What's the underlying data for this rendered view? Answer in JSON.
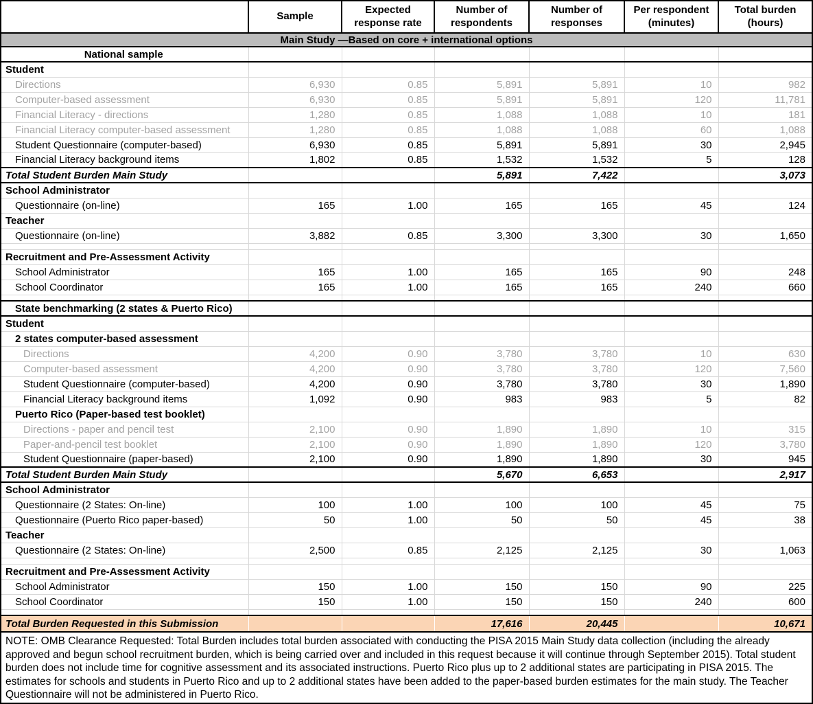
{
  "colors": {
    "band_bg": "#bcbcbc",
    "grand_total_bg": "#fbd5b5",
    "muted_text": "#a3a3a3",
    "grid_line": "#d8d8d8"
  },
  "table": {
    "headers": [
      "",
      "Sample",
      "Expected response rate",
      "Number of respondents",
      "Number of responses",
      "Per respondent (minutes)",
      "Total burden (hours)"
    ],
    "band_title": "Main Study —Based on core + international options",
    "rows": [
      {
        "type": "group-center",
        "borders": "bottom",
        "label": "National sample"
      },
      {
        "type": "section",
        "label": "Student"
      },
      {
        "type": "data",
        "muted": true,
        "indent": 1,
        "label": "Directions",
        "cells": [
          "6,930",
          "0.85",
          "5,891",
          "5,891",
          "10",
          "982"
        ]
      },
      {
        "type": "data",
        "muted": true,
        "indent": 1,
        "label": "Computer-based assessment",
        "cells": [
          "6,930",
          "0.85",
          "5,891",
          "5,891",
          "120",
          "11,781"
        ]
      },
      {
        "type": "data",
        "muted": true,
        "indent": 1,
        "label": "Financial Literacy - directions",
        "cells": [
          "1,280",
          "0.85",
          "1,088",
          "1,088",
          "10",
          "181"
        ]
      },
      {
        "type": "data",
        "muted": true,
        "indent": 1,
        "label": "Financial Literacy computer-based assessment",
        "cells": [
          "1,280",
          "0.85",
          "1,088",
          "1,088",
          "60",
          "1,088"
        ]
      },
      {
        "type": "data",
        "indent": 1,
        "label": "Student Questionnaire (computer-based)",
        "cells": [
          "6,930",
          "0.85",
          "5,891",
          "5,891",
          "30",
          "2,945"
        ]
      },
      {
        "type": "data",
        "indent": 1,
        "label": "Financial Literacy background items",
        "cells": [
          "1,802",
          "0.85",
          "1,532",
          "1,532",
          "5",
          "128"
        ]
      },
      {
        "type": "total",
        "label": "Total Student Burden Main Study",
        "cells": [
          "",
          "",
          "5,891",
          "7,422",
          "",
          "3,073"
        ]
      },
      {
        "type": "section",
        "label": "School Administrator"
      },
      {
        "type": "data",
        "indent": 1,
        "label": "Questionnaire (on-line)",
        "cells": [
          "165",
          "1.00",
          "165",
          "165",
          "45",
          "124"
        ]
      },
      {
        "type": "section",
        "label": "Teacher"
      },
      {
        "type": "data",
        "indent": 1,
        "label": "Questionnaire (on-line)",
        "cells": [
          "3,882",
          "0.85",
          "3,300",
          "3,300",
          "30",
          "1,650"
        ]
      },
      {
        "type": "spacer"
      },
      {
        "type": "section",
        "label": "Recruitment and Pre-Assessment Activity"
      },
      {
        "type": "data",
        "indent": 1,
        "label": "School Administrator",
        "cells": [
          "165",
          "1.00",
          "165",
          "165",
          "90",
          "248"
        ]
      },
      {
        "type": "data",
        "indent": 1,
        "label": "School Coordinator",
        "cells": [
          "165",
          "1.00",
          "165",
          "165",
          "240",
          "660"
        ]
      },
      {
        "type": "spacer"
      },
      {
        "type": "group-center",
        "borders": "both",
        "label": "State benchmarking (2 states & Puerto Rico)"
      },
      {
        "type": "section",
        "label": "Student"
      },
      {
        "type": "subsection",
        "indent": 1,
        "label": "2 states computer-based assessment"
      },
      {
        "type": "data",
        "muted": true,
        "indent": 2,
        "label": "Directions",
        "cells": [
          "4,200",
          "0.90",
          "3,780",
          "3,780",
          "10",
          "630"
        ]
      },
      {
        "type": "data",
        "muted": true,
        "indent": 2,
        "label": "Computer-based assessment",
        "cells": [
          "4,200",
          "0.90",
          "3,780",
          "3,780",
          "120",
          "7,560"
        ]
      },
      {
        "type": "data",
        "indent": 2,
        "label": "Student Questionnaire (computer-based)",
        "cells": [
          "4,200",
          "0.90",
          "3,780",
          "3,780",
          "30",
          "1,890"
        ]
      },
      {
        "type": "data",
        "indent": 2,
        "label": "Financial Literacy background items",
        "cells": [
          "1,092",
          "0.90",
          "983",
          "983",
          "5",
          "82"
        ]
      },
      {
        "type": "subsection",
        "indent": 1,
        "label": "Puerto Rico (Paper-based test booklet)"
      },
      {
        "type": "data",
        "muted": true,
        "indent": 2,
        "label": "Directions - paper and pencil test",
        "cells": [
          "2,100",
          "0.90",
          "1,890",
          "1,890",
          "10",
          "315"
        ]
      },
      {
        "type": "data",
        "muted": true,
        "indent": 2,
        "label": "Paper-and-pencil test booklet",
        "cells": [
          "2,100",
          "0.90",
          "1,890",
          "1,890",
          "120",
          "3,780"
        ]
      },
      {
        "type": "data",
        "indent": 2,
        "label": "Student Questionnaire (paper-based)",
        "cells": [
          "2,100",
          "0.90",
          "1,890",
          "1,890",
          "30",
          "945"
        ]
      },
      {
        "type": "total",
        "label": "Total Student Burden Main Study",
        "cells": [
          "",
          "",
          "5,670",
          "6,653",
          "",
          "2,917"
        ]
      },
      {
        "type": "section",
        "label": "School Administrator"
      },
      {
        "type": "data",
        "indent": 1,
        "label": "Questionnaire (2 States: On-line)",
        "cells": [
          "100",
          "1.00",
          "100",
          "100",
          "45",
          "75"
        ]
      },
      {
        "type": "data",
        "indent": 1,
        "label": "Questionnaire (Puerto Rico paper-based)",
        "cells": [
          "50",
          "1.00",
          "50",
          "50",
          "45",
          "38"
        ]
      },
      {
        "type": "section",
        "label": "Teacher"
      },
      {
        "type": "data",
        "indent": 1,
        "label": "Questionnaire (2 States: On-line)",
        "cells": [
          "2,500",
          "0.85",
          "2,125",
          "2,125",
          "30",
          "1,063"
        ]
      },
      {
        "type": "spacer"
      },
      {
        "type": "section",
        "label": "Recruitment and Pre-Assessment Activity"
      },
      {
        "type": "data",
        "indent": 1,
        "label": "School Administrator",
        "cells": [
          "150",
          "1.00",
          "150",
          "150",
          "90",
          "225"
        ]
      },
      {
        "type": "data",
        "indent": 1,
        "label": "School Coordinator",
        "cells": [
          "150",
          "1.00",
          "150",
          "150",
          "240",
          "600"
        ]
      },
      {
        "type": "spacer"
      },
      {
        "type": "grand-total",
        "label": "Total Burden Requested in this Submission",
        "cells": [
          "",
          "",
          "17,616",
          "20,445",
          "",
          "10,671"
        ]
      }
    ]
  },
  "note": "NOTE: OMB Clearance Requested: Total Burden includes total burden associated with conducting the PISA 2015 Main Study data collection (including the already approved and begun school recruitment burden, which is being carried over and included in this request because it will continue through September 2015). Total student burden does not include time for cognitive assessment and its associated instructions. Puerto Rico plus up to 2 additional states are participating in PISA 2015. The estimates for schools and students in Puerto Rico and up to 2 additional states have been added to the paper-based burden estimates for the main study. The Teacher Questionnaire will not be administered in Puerto Rico."
}
